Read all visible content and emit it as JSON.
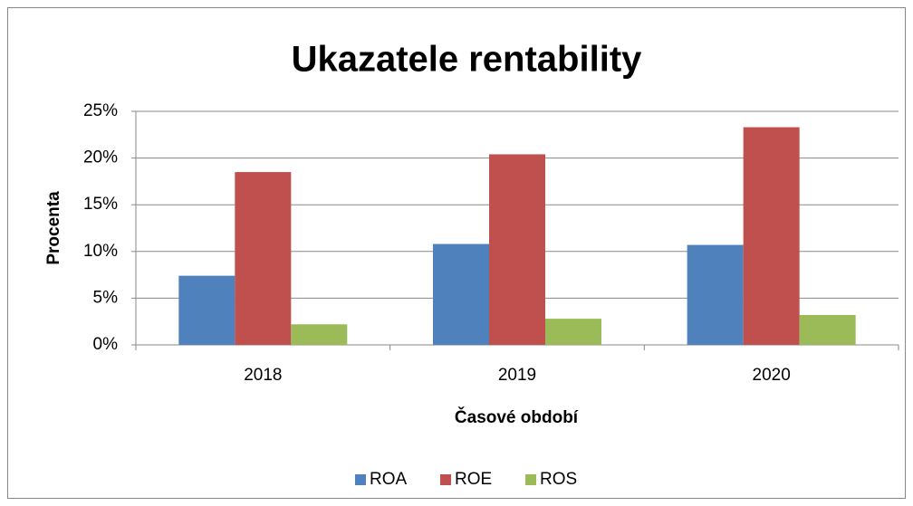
{
  "chart_data": {
    "type": "bar",
    "title": "Ukazatele rentability",
    "x_label": "Časové období",
    "y_label": "Procenta",
    "categories": [
      "2018",
      "2019",
      "2020"
    ],
    "series": [
      {
        "name": "ROA",
        "color": "#4f81bd",
        "values": [
          7.4,
          10.8,
          10.7
        ]
      },
      {
        "name": "ROE",
        "color": "#c0504d",
        "values": [
          18.5,
          20.4,
          23.3
        ]
      },
      {
        "name": "ROS",
        "color": "#9bbb59",
        "values": [
          2.2,
          2.8,
          3.2
        ]
      }
    ],
    "ylim": [
      0,
      25
    ],
    "yticks": [
      {
        "value": 0,
        "label": "0%"
      },
      {
        "value": 5,
        "label": "5%"
      },
      {
        "value": 10,
        "label": "10%"
      },
      {
        "value": 15,
        "label": "15%"
      },
      {
        "value": 20,
        "label": "20%"
      },
      {
        "value": 25,
        "label": "25%"
      }
    ],
    "grid": true,
    "legend": "bottom"
  }
}
